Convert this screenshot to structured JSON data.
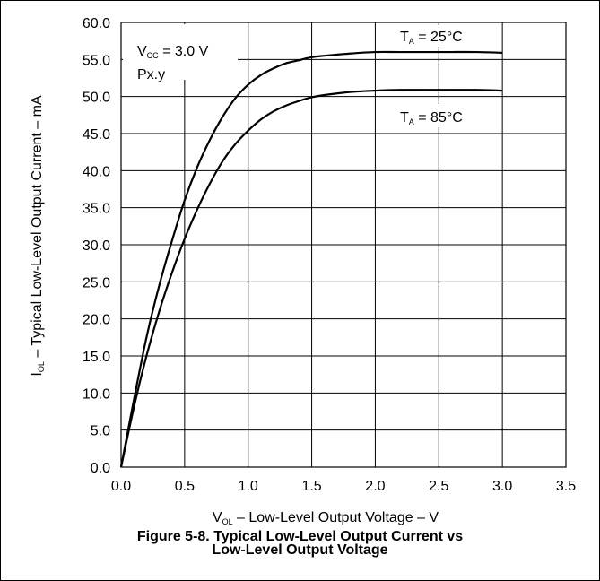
{
  "chart_data": {
    "type": "line",
    "title": "",
    "xlim": [
      0,
      3.5
    ],
    "ylim": [
      0,
      60
    ],
    "x_ticks": [
      "0.0",
      "0.5",
      "1.0",
      "1.5",
      "2.0",
      "2.5",
      "3.0",
      "3.5"
    ],
    "y_ticks": [
      "0.0",
      "5.0",
      "10.0",
      "15.0",
      "20.0",
      "25.0",
      "30.0",
      "35.0",
      "40.0",
      "45.0",
      "50.0",
      "55.0",
      "60.0"
    ],
    "xlabel": {
      "main": "V",
      "sub": "OL",
      "rest": " – Low-Level Output Voltage – V"
    },
    "ylabel": {
      "main": "I",
      "sub": "OL",
      "rest": " – Typical Low-Level Output Current – mA"
    },
    "grid": true,
    "series": [
      {
        "name": "TA = 25°C",
        "x": [
          0.0,
          0.1,
          0.2,
          0.3,
          0.4,
          0.5,
          0.6,
          0.7,
          0.8,
          0.9,
          1.0,
          1.1,
          1.2,
          1.3,
          1.4,
          1.5,
          1.6,
          1.8,
          2.0,
          2.2,
          2.5,
          2.8,
          3.0
        ],
        "values": [
          0.0,
          9.0,
          17.5,
          24.5,
          30.5,
          36.0,
          40.5,
          44.2,
          47.3,
          49.8,
          51.6,
          52.9,
          53.8,
          54.5,
          54.9,
          55.3,
          55.5,
          55.8,
          56.0,
          56.0,
          56.0,
          56.0,
          55.9
        ]
      },
      {
        "name": "TA = 85°C",
        "x": [
          0.0,
          0.1,
          0.2,
          0.3,
          0.4,
          0.5,
          0.6,
          0.7,
          0.8,
          0.9,
          1.0,
          1.1,
          1.2,
          1.3,
          1.4,
          1.5,
          1.6,
          1.8,
          2.0,
          2.2,
          2.5,
          2.8,
          3.0
        ],
        "values": [
          0.0,
          8.0,
          15.0,
          21.0,
          26.2,
          30.8,
          34.8,
          38.3,
          41.3,
          43.6,
          45.4,
          46.9,
          48.0,
          48.8,
          49.4,
          49.9,
          50.2,
          50.6,
          50.8,
          50.9,
          50.9,
          50.9,
          50.8
        ]
      }
    ],
    "annotations": {
      "condition_vcc": {
        "main": "V",
        "sub": "CC",
        "rest": " = 3.0 V"
      },
      "condition_pin": "Px.y",
      "label_25": {
        "main": "T",
        "sub": "A",
        "rest": " = 25°C"
      },
      "label_85": {
        "main": "T",
        "sub": "A",
        "rest": " = 85°C"
      }
    }
  },
  "caption": {
    "line1": "Figure 5-8. Typical Low-Level Output Current vs",
    "line2": "Low-Level Output Voltage"
  }
}
